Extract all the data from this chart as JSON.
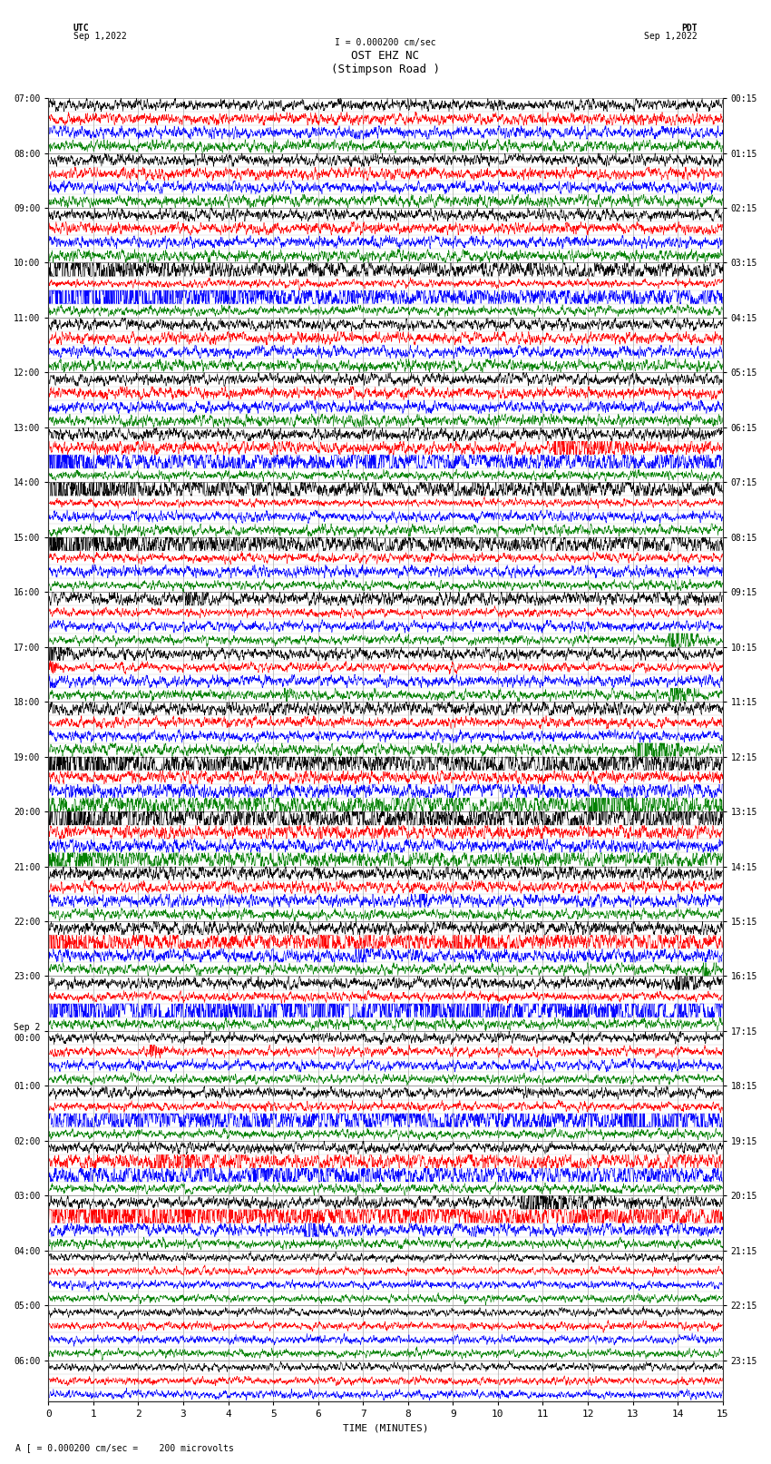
{
  "title_line1": "OST EHZ NC",
  "title_line2": "(Stimpson Road )",
  "scale_label": "I = 0.000200 cm/sec",
  "left_label": "UTC",
  "left_date": "Sep 1,2022",
  "right_label": "PDT",
  "right_date": "Sep 1,2022",
  "bottom_label": "TIME (MINUTES)",
  "bottom_note": "A [ = 0.000200 cm/sec =    200 microvolts",
  "utc_times": [
    "07:00",
    "",
    "",
    "",
    "08:00",
    "",
    "",
    "",
    "09:00",
    "",
    "",
    "",
    "10:00",
    "",
    "",
    "",
    "11:00",
    "",
    "",
    "",
    "12:00",
    "",
    "",
    "",
    "13:00",
    "",
    "",
    "",
    "14:00",
    "",
    "",
    "",
    "15:00",
    "",
    "",
    "",
    "16:00",
    "",
    "",
    "",
    "17:00",
    "",
    "",
    "",
    "18:00",
    "",
    "",
    "",
    "19:00",
    "",
    "",
    "",
    "20:00",
    "",
    "",
    "",
    "21:00",
    "",
    "",
    "",
    "22:00",
    "",
    "",
    "",
    "23:00",
    "",
    "",
    "",
    "Sep 2\n00:00",
    "",
    "",
    "",
    "01:00",
    "",
    "",
    "",
    "02:00",
    "",
    "",
    "",
    "03:00",
    "",
    "",
    "",
    "04:00",
    "",
    "",
    "",
    "05:00",
    "",
    "",
    "",
    "06:00",
    "",
    ""
  ],
  "pdt_times": [
    "00:15",
    "",
    "",
    "",
    "01:15",
    "",
    "",
    "",
    "02:15",
    "",
    "",
    "",
    "03:15",
    "",
    "",
    "",
    "04:15",
    "",
    "",
    "",
    "05:15",
    "",
    "",
    "",
    "06:15",
    "",
    "",
    "",
    "07:15",
    "",
    "",
    "",
    "08:15",
    "",
    "",
    "",
    "09:15",
    "",
    "",
    "",
    "10:15",
    "",
    "",
    "",
    "11:15",
    "",
    "",
    "",
    "12:15",
    "",
    "",
    "",
    "13:15",
    "",
    "",
    "",
    "14:15",
    "",
    "",
    "",
    "15:15",
    "",
    "",
    "",
    "16:15",
    "",
    "",
    "",
    "17:15",
    "",
    "",
    "",
    "18:15",
    "",
    "",
    "",
    "19:15",
    "",
    "",
    "",
    "20:15",
    "",
    "",
    "",
    "21:15",
    "",
    "",
    "",
    "22:15",
    "",
    "",
    "",
    "23:15",
    "",
    ""
  ],
  "n_rows": 95,
  "colors": [
    "black",
    "red",
    "blue",
    "green"
  ],
  "fig_width": 8.5,
  "fig_height": 16.13,
  "background_color": "white",
  "grid_color": "#aaaaaa",
  "minute_ticks": [
    0,
    1,
    2,
    3,
    4,
    5,
    6,
    7,
    8,
    9,
    10,
    11,
    12,
    13,
    14,
    15
  ],
  "x_label_fontsize": 8,
  "y_label_fontsize": 7,
  "title_fontsize": 9,
  "note_fontsize": 7,
  "trace_lw": 0.4,
  "samples": 3000
}
